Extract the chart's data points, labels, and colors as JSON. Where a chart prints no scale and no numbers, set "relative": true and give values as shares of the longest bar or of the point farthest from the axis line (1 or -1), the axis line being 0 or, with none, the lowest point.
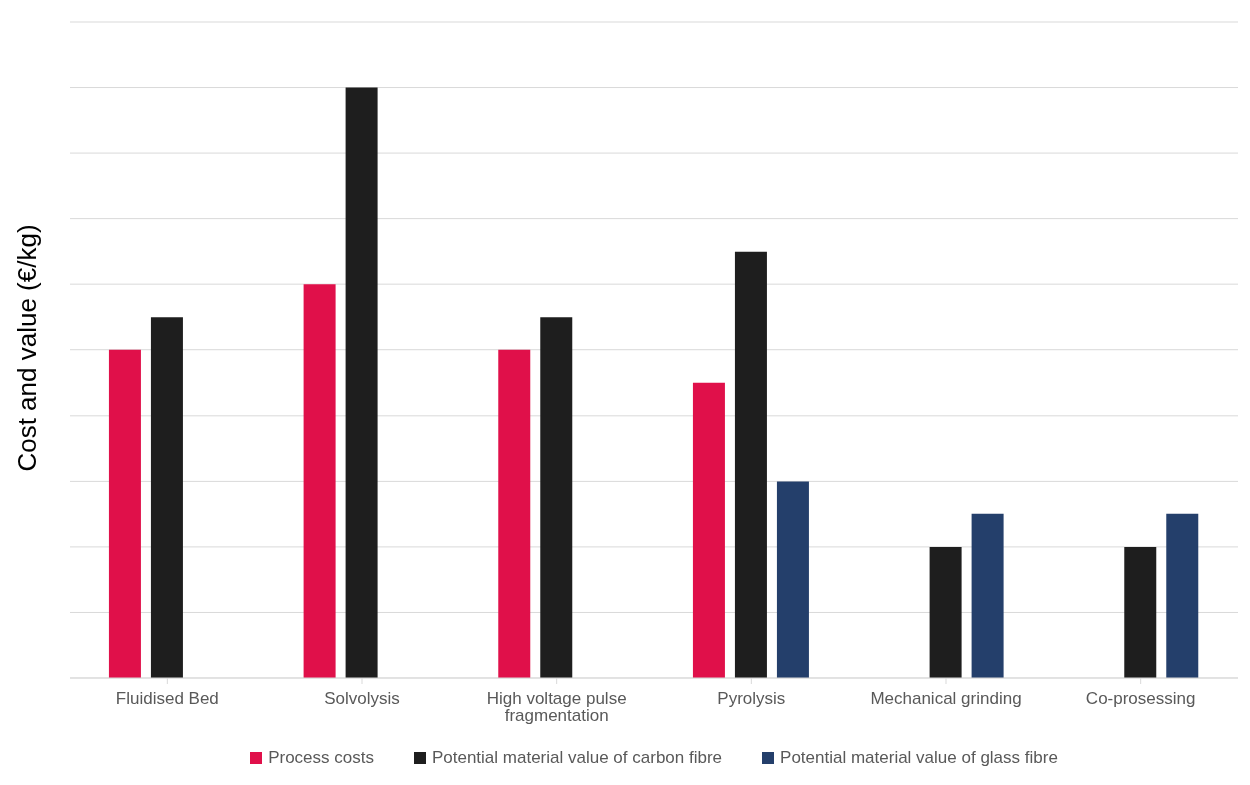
{
  "chart_data": {
    "type": "bar",
    "ylabel": "Cost and value (€/kg)",
    "relative": true,
    "grid": "y",
    "legend": "bottom",
    "categories": [
      "Fluidised Bed",
      "Solvolysis",
      "High voltage pulse fragmentation",
      "Pyrolysis",
      "Mechanical grinding",
      "Co-prosessing"
    ],
    "series": [
      {
        "name": "Process costs",
        "color": "#e0104a",
        "values": [
          0.556,
          0.667,
          0.556,
          0.5,
          null,
          null
        ]
      },
      {
        "name": "Potential material value of carbon fibre",
        "color": "#1e1e1e",
        "values": [
          0.611,
          1,
          0.611,
          0.722,
          0.222,
          0.222
        ]
      },
      {
        "name": "Potential material value of glass fibre",
        "color": "#243f6b",
        "values": [
          null,
          null,
          null,
          0.333,
          0.278,
          0.278
        ]
      }
    ]
  }
}
